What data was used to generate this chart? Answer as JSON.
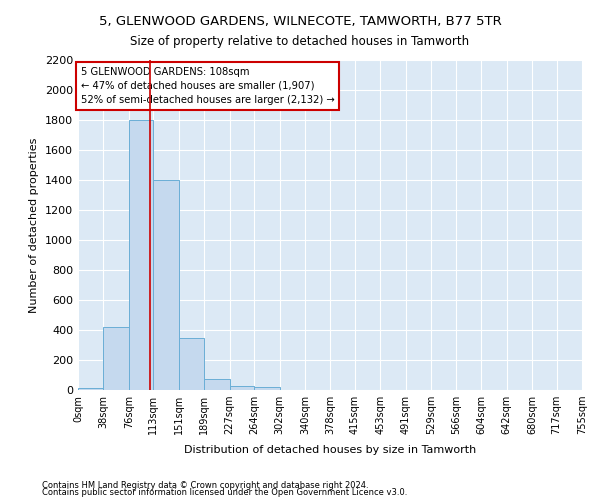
{
  "title": "5, GLENWOOD GARDENS, WILNECOTE, TAMWORTH, B77 5TR",
  "subtitle": "Size of property relative to detached houses in Tamworth",
  "xlabel": "Distribution of detached houses by size in Tamworth",
  "ylabel": "Number of detached properties",
  "bar_color": "#c5d9ee",
  "bar_edge_color": "#6aaed6",
  "background_color": "#dce9f5",
  "grid_color": "#ffffff",
  "property_size": 108,
  "annotation_line1": "5 GLENWOOD GARDENS: 108sqm",
  "annotation_line2": "← 47% of detached houses are smaller (1,907)",
  "annotation_line3": "52% of semi-detached houses are larger (2,132) →",
  "annotation_box_color": "#ffffff",
  "annotation_edge_color": "#cc0000",
  "red_line_color": "#cc0000",
  "footer_line1": "Contains HM Land Registry data © Crown copyright and database right 2024.",
  "footer_line2": "Contains public sector information licensed under the Open Government Licence v3.0.",
  "bin_edges": [
    0,
    38,
    76,
    113,
    151,
    189,
    227,
    264,
    302,
    340,
    378,
    415,
    453,
    491,
    529,
    566,
    604,
    642,
    680,
    717,
    755
  ],
  "bin_counts": [
    15,
    420,
    1800,
    1400,
    350,
    75,
    30,
    20,
    0,
    0,
    0,
    0,
    0,
    0,
    0,
    0,
    0,
    0,
    0,
    0
  ],
  "ylim": [
    0,
    2200
  ],
  "yticks": [
    0,
    200,
    400,
    600,
    800,
    1000,
    1200,
    1400,
    1600,
    1800,
    2000,
    2200
  ]
}
